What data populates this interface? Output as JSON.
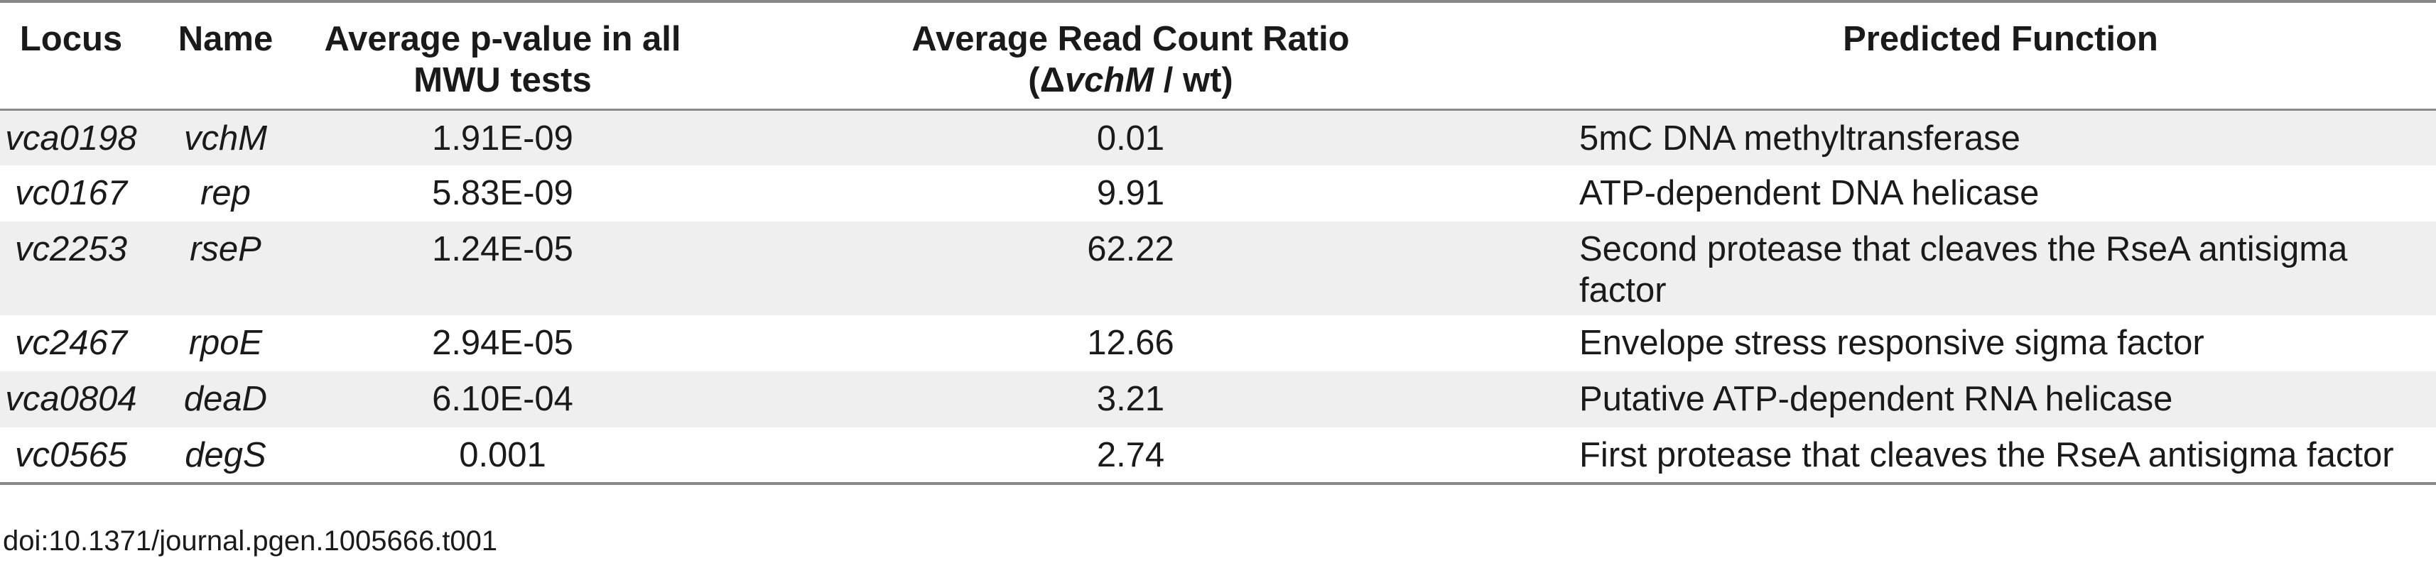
{
  "table": {
    "headers": {
      "locus": "Locus",
      "name": "Name",
      "pval": "Average p-value in all MWU tests",
      "ratio_line1": "Average Read Count Ratio",
      "ratio_delta": "(Δ",
      "ratio_gene": "vchM",
      "ratio_rest": " / wt)",
      "function": "Predicted Function"
    },
    "rows": [
      {
        "locus": "vca0198",
        "name": "vchM",
        "pval": "1.91E-09",
        "ratio": "0.01",
        "function": "5mC DNA methyltransferase"
      },
      {
        "locus": "vc0167",
        "name": "rep",
        "pval": "5.83E-09",
        "ratio": "9.91",
        "function": "ATP-dependent DNA helicase"
      },
      {
        "locus": "vc2253",
        "name": "rseP",
        "pval": "1.24E-05",
        "ratio": "62.22",
        "function": "Second protease that cleaves the RseA antisigma factor"
      },
      {
        "locus": "vc2467",
        "name": "rpoE",
        "pval": "2.94E-05",
        "ratio": "12.66",
        "function": "Envelope stress responsive sigma factor"
      },
      {
        "locus": "vca0804",
        "name": "deaD",
        "pval": "6.10E-04",
        "ratio": "3.21",
        "function": "Putative ATP-dependent RNA helicase"
      },
      {
        "locus": "vc0565",
        "name": "degS",
        "pval": "0.001",
        "ratio": "2.74",
        "function": "First protease that cleaves the RseA antisigma factor"
      }
    ]
  },
  "doi": "doi:10.1371/journal.pgen.1005666.t001"
}
